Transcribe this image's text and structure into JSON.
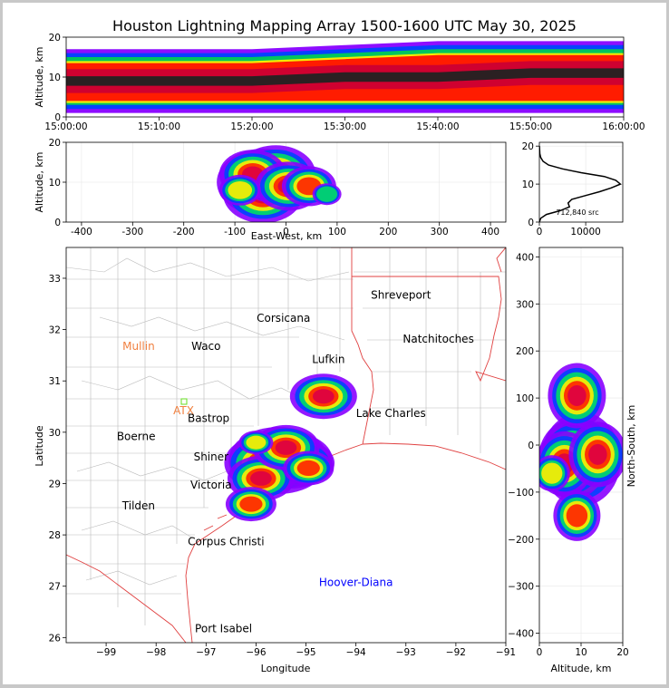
{
  "chart_data": [
    {
      "panel": "time-altitude",
      "type": "heatmap",
      "title": "Houston Lightning Mapping Array 1500-1600 UTC May 30, 2025",
      "ylabel": "Altitude, km",
      "xlim": [
        "15:00:00",
        "16:00:00"
      ],
      "ylim": [
        0,
        20
      ],
      "x_ticks": [
        "15:00:00",
        "15:10:00",
        "15:20:00",
        "15:30:00",
        "15:40:00",
        "15:50:00",
        "16:00:00"
      ],
      "y_ticks": [
        0,
        10,
        20
      ],
      "band_bottom_km": [
        3,
        3,
        3,
        3,
        3,
        3,
        3
      ],
      "band_core_km": [
        9,
        9,
        9,
        10,
        10,
        11,
        11
      ],
      "band_top_km": [
        15,
        15,
        15,
        16,
        17,
        17,
        17
      ]
    },
    {
      "panel": "east-west-altitude",
      "type": "heatmap",
      "xlabel": "East-West, km",
      "ylabel": "Altitude, km",
      "xlim": [
        -430,
        430
      ],
      "ylim": [
        0,
        20
      ],
      "x_ticks": [
        -400,
        -300,
        -200,
        -100,
        0,
        100,
        200,
        300,
        400
      ],
      "y_ticks": [
        0,
        10,
        20
      ],
      "cells": [
        {
          "x": -45,
          "y": 10,
          "level": 5
        },
        {
          "x": -45,
          "y": 7,
          "level": 4
        },
        {
          "x": -20,
          "y": 12,
          "level": 4
        },
        {
          "x": -65,
          "y": 12,
          "level": 3
        },
        {
          "x": 5,
          "y": 9,
          "level": 3
        },
        {
          "x": 45,
          "y": 9,
          "level": 2
        },
        {
          "x": -90,
          "y": 8,
          "level": 1
        },
        {
          "x": 80,
          "y": 7,
          "level": 0
        }
      ]
    },
    {
      "panel": "altitude-histogram",
      "type": "line",
      "xlim": [
        0,
        18000
      ],
      "ylim": [
        0,
        21
      ],
      "x_ticks": [
        0,
        10000
      ],
      "y_ticks": [
        0,
        10,
        20
      ],
      "y": [
        0,
        1,
        2,
        3,
        4,
        5,
        6,
        7,
        8,
        9,
        10,
        11,
        12,
        13,
        14,
        15,
        16,
        17,
        18,
        19,
        20
      ],
      "values": [
        0,
        300,
        1500,
        4500,
        6500,
        6200,
        7000,
        10000,
        13000,
        15500,
        17500,
        16500,
        14000,
        9000,
        5000,
        2000,
        800,
        300,
        100,
        50,
        20
      ],
      "annotation": "712,840 src"
    },
    {
      "panel": "plan-view-map",
      "type": "heatmap",
      "xlabel": "Longitude",
      "ylabel": "Latitude",
      "xlim": [
        -99.8,
        -91
      ],
      "ylim": [
        25.9,
        33.6
      ],
      "x_ticks": [
        -99,
        -98,
        -97,
        -96,
        -95,
        -94,
        -93,
        -92,
        -91
      ],
      "y_ticks": [
        26,
        27,
        28,
        29,
        30,
        31,
        32,
        33
      ],
      "cities": [
        {
          "name": "Shreveport",
          "lon": -93.1,
          "lat": 32.6,
          "color": "#000000"
        },
        {
          "name": "Corsicana",
          "lon": -95.45,
          "lat": 32.15,
          "color": "#000000"
        },
        {
          "name": "Mullin",
          "lon": -98.35,
          "lat": 31.6,
          "color": "#f08040"
        },
        {
          "name": "Waco",
          "lon": -97.0,
          "lat": 31.6,
          "color": "#000000"
        },
        {
          "name": "Natchitoches",
          "lon": -92.35,
          "lat": 31.75,
          "color": "#000000"
        },
        {
          "name": "Lufkin",
          "lon": -94.55,
          "lat": 31.35,
          "color": "#000000"
        },
        {
          "name": "ATX",
          "lon": -97.45,
          "lat": 30.35,
          "color": "#f08040"
        },
        {
          "name": "Bastrop",
          "lon": -96.95,
          "lat": 30.2,
          "color": "#000000"
        },
        {
          "name": "Lake Charles",
          "lon": -93.3,
          "lat": 30.3,
          "color": "#000000"
        },
        {
          "name": "Boerne",
          "lon": -98.4,
          "lat": 29.85,
          "color": "#000000"
        },
        {
          "name": "Shiner",
          "lon": -96.9,
          "lat": 29.45,
          "color": "#000000"
        },
        {
          "name": "Victoria",
          "lon": -96.9,
          "lat": 28.9,
          "color": "#000000"
        },
        {
          "name": "Tilden",
          "lon": -98.35,
          "lat": 28.5,
          "color": "#000000"
        },
        {
          "name": "Corpus Christi",
          "lon": -96.6,
          "lat": 27.8,
          "color": "#000000"
        },
        {
          "name": "Hoover-Diana",
          "lon": -94.0,
          "lat": 27.0,
          "color": "#0000ff"
        },
        {
          "name": "Port Isabel",
          "lon": -96.65,
          "lat": 26.1,
          "color": "#000000"
        }
      ],
      "cells": [
        {
          "lon": -95.55,
          "lat": 29.45,
          "level": 5
        },
        {
          "lon": -95.3,
          "lat": 29.45,
          "level": 4
        },
        {
          "lon": -95.8,
          "lat": 29.4,
          "level": 4
        },
        {
          "lon": -95.1,
          "lat": 29.4,
          "level": 3
        },
        {
          "lon": -95.9,
          "lat": 29.1,
          "level": 3
        },
        {
          "lon": -95.4,
          "lat": 29.7,
          "level": 3
        },
        {
          "lon": -96.1,
          "lat": 28.6,
          "level": 2
        },
        {
          "lon": -94.65,
          "lat": 30.7,
          "level": 3
        },
        {
          "lon": -94.95,
          "lat": 29.3,
          "level": 2
        },
        {
          "lon": -96.0,
          "lat": 29.8,
          "level": 1
        }
      ]
    },
    {
      "panel": "altitude-north-south",
      "type": "heatmap",
      "xlabel": "Altitude, km",
      "ylabel": "North-South, km",
      "xlim": [
        0,
        20
      ],
      "ylim": [
        -420,
        420
      ],
      "x_ticks": [
        0,
        10,
        20
      ],
      "y_ticks": [
        -400,
        -300,
        -200,
        -100,
        0,
        100,
        200,
        300,
        400
      ],
      "cells": [
        {
          "alt": 10,
          "ns": -30,
          "level": 5
        },
        {
          "alt": 8,
          "ns": -30,
          "level": 4
        },
        {
          "alt": 6,
          "ns": -40,
          "level": 3
        },
        {
          "alt": 14,
          "ns": -20,
          "level": 3
        },
        {
          "alt": 9,
          "ns": 105,
          "level": 3
        },
        {
          "alt": 9,
          "ns": -150,
          "level": 2
        },
        {
          "alt": 3,
          "ns": -60,
          "level": 1
        }
      ]
    }
  ]
}
